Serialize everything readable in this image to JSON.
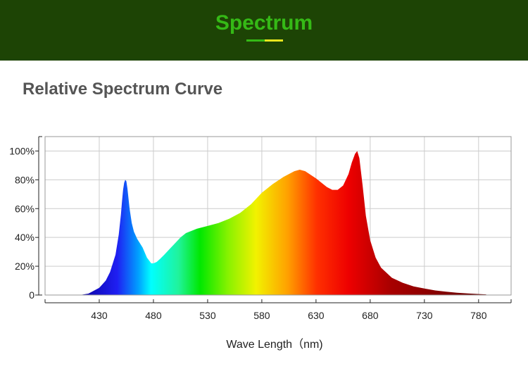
{
  "header": {
    "title": "Spectrum",
    "background": "#1d4405",
    "title_color": "#35b916",
    "accent_colors": [
      "#35b916",
      "#e8e61e"
    ]
  },
  "section": {
    "title": "Relative Spectrum Curve"
  },
  "chart_data": {
    "type": "area",
    "title": "Relative Spectrum Curve",
    "xlabel": "Wave Length（nm)",
    "ylabel": "",
    "xlim": [
      380,
      810
    ],
    "ylim": [
      0,
      1.1
    ],
    "grid": true,
    "x_ticks": [
      430,
      480,
      530,
      580,
      630,
      680,
      730,
      780
    ],
    "y_ticks": [
      {
        "value": 0,
        "label": "0"
      },
      {
        "value": 0.2,
        "label": "20%"
      },
      {
        "value": 0.4,
        "label": "40%"
      },
      {
        "value": 0.6,
        "label": "60%"
      },
      {
        "value": 0.8,
        "label": "80%"
      },
      {
        "value": 1.0,
        "label": "100%"
      }
    ],
    "series": [
      {
        "x": [
          412,
          420,
          430,
          436,
          440,
          445,
          448,
          450,
          451,
          452,
          453,
          454,
          455,
          456,
          458,
          460,
          462,
          465,
          470,
          474,
          478,
          480,
          483,
          486,
          490,
          495,
          500,
          505,
          510,
          520,
          530,
          540,
          550,
          560,
          570,
          580,
          590,
          600,
          610,
          615,
          620,
          630,
          640,
          645,
          650,
          655,
          660,
          663,
          666,
          668,
          670,
          673,
          676,
          680,
          685,
          690,
          700,
          710,
          720,
          730,
          740,
          750,
          760,
          770,
          780,
          787
        ],
        "y": [
          0,
          0.01,
          0.05,
          0.1,
          0.16,
          0.28,
          0.42,
          0.56,
          0.65,
          0.73,
          0.78,
          0.8,
          0.79,
          0.74,
          0.6,
          0.5,
          0.44,
          0.39,
          0.33,
          0.26,
          0.22,
          0.22,
          0.23,
          0.25,
          0.28,
          0.32,
          0.36,
          0.4,
          0.43,
          0.46,
          0.48,
          0.5,
          0.53,
          0.57,
          0.63,
          0.71,
          0.77,
          0.82,
          0.86,
          0.87,
          0.86,
          0.81,
          0.75,
          0.73,
          0.73,
          0.76,
          0.84,
          0.92,
          0.98,
          1.0,
          0.95,
          0.76,
          0.55,
          0.38,
          0.26,
          0.19,
          0.12,
          0.085,
          0.06,
          0.045,
          0.032,
          0.023,
          0.016,
          0.011,
          0.007,
          0.004
        ]
      }
    ]
  }
}
